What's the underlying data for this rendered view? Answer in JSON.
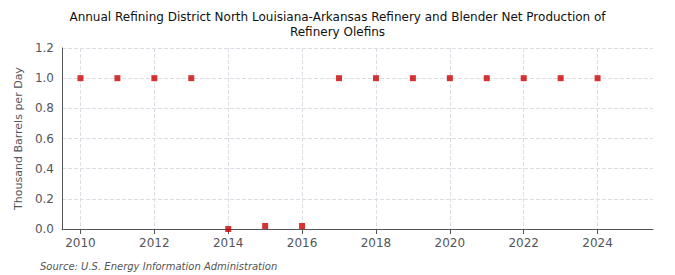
{
  "chart_data": {
    "type": "scatter",
    "title": "Annual Refining District North Louisiana-Arkansas Refinery and Blender Net Production of\nRefinery Olefins",
    "ylabel": "Thousand Barrels per Day",
    "annotations": [
      "Source: U.S. Energy Information Administration"
    ],
    "x": [
      2010,
      2011,
      2012,
      2013,
      2014,
      2015,
      2016,
      2017,
      2018,
      2019,
      2020,
      2021,
      2022,
      2023,
      2024
    ],
    "values": [
      1.0,
      1.0,
      1.0,
      1.0,
      0.0,
      0.02,
      0.02,
      1.0,
      1.0,
      1.0,
      1.0,
      1.0,
      1.0,
      1.0,
      1.0
    ],
    "color": "#cc0000",
    "marker": "square",
    "xlim": [
      2009.5,
      2025.5
    ],
    "xticks": [
      2010,
      2012,
      2014,
      2016,
      2018,
      2020,
      2022,
      2024
    ],
    "ylim": [
      0.0,
      1.2
    ],
    "yticks": [
      {
        "value": 0.0,
        "label": "0.0"
      },
      0.2,
      0.4,
      0.6,
      0.8,
      {
        "value": 1.0,
        "label": "1.0"
      },
      1.2
    ],
    "grid": true
  }
}
